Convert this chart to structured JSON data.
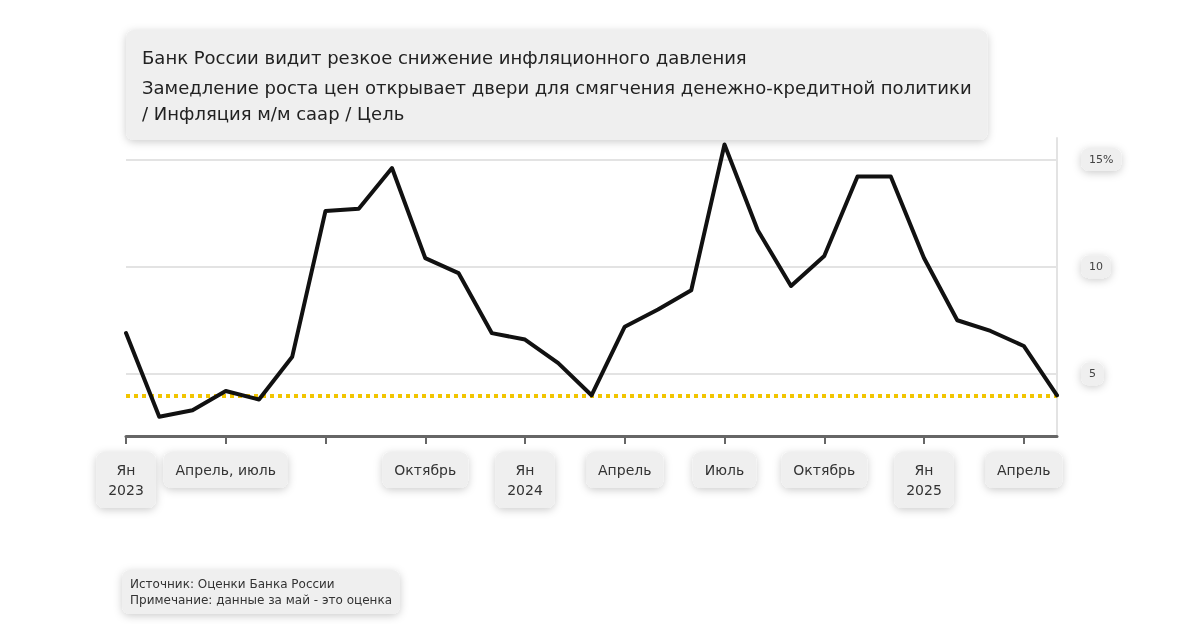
{
  "chart_data": {
    "type": "line",
    "title": "Банк России видит резкое снижение инфляционного давления",
    "subtitle": "Замедление роста цен открывает двери для смягчения денежно-кредитной политики\n/ Инфляция м/м саар / Цель",
    "categories": [
      "Ян\n2023",
      null,
      null,
      "Апрель, июль",
      null,
      null,
      null,
      null,
      null,
      "Октябрь",
      null,
      null,
      "Ян\n2024",
      null,
      null,
      "Апрель",
      null,
      null,
      "Июль",
      null,
      null,
      "Октябрь",
      null,
      null,
      "Ян\n2025",
      null,
      null,
      "Апрель",
      null
    ],
    "series": [
      {
        "color": "#111111",
        "values": [
          6.9,
          3.0,
          3.3,
          4.2,
          3.8,
          5.8,
          12.6,
          12.7,
          14.6,
          10.4,
          9.7,
          6.9,
          6.6,
          5.5,
          4.0,
          7.2,
          8.0,
          8.9,
          15.7,
          11.7,
          9.1,
          10.5,
          14.2,
          14.2,
          10.4,
          7.5,
          7.0,
          6.3,
          4.0
        ]
      }
    ],
    "ylim": [
      2.1,
      16
    ],
    "yticks": [
      5,
      10,
      {
        "value": 15,
        "label": "15%"
      }
    ],
    "grid": "y",
    "marker": "none",
    "line_style": "solid",
    "ref_lines": [
      {
        "axis": "y",
        "value": 4,
        "color": "#f2c500",
        "line_style": "dotted"
      }
    ],
    "annotations": [
      "Источник: Оценки Банка России",
      "Примечание: данные за май - это оценка"
    ]
  }
}
